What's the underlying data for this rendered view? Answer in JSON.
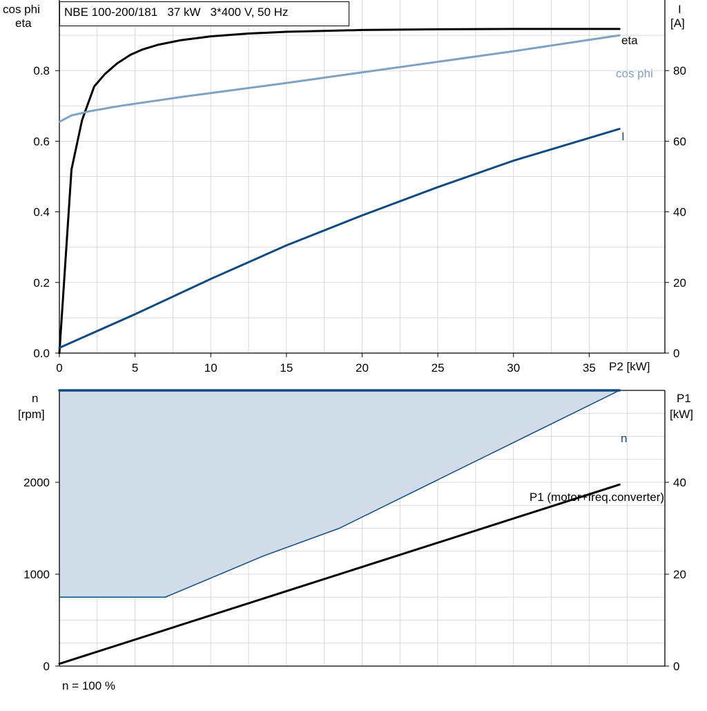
{
  "header": {
    "title": "NBE 100-200/181   37 kW   3*400 V, 50 Hz"
  },
  "footer": {
    "speed_note": "n = 100 %"
  },
  "colors": {
    "eta": "#000000",
    "cos_phi": "#7fa2c2",
    "current": "#0f4a80",
    "speed": "#0f4a80",
    "speed_fill": "#d1dce9",
    "p1": "#000000",
    "grid": "#d9d9d9"
  },
  "chart_data": [
    {
      "type": "line",
      "x_label": "P2 [kW]",
      "x_ticks": [
        0,
        5,
        10,
        15,
        20,
        25,
        30,
        35
      ],
      "xlim": [
        0,
        40
      ],
      "y_label_left_lines": [
        "cos phi",
        "eta"
      ],
      "ylim_left": [
        0,
        1.0
      ],
      "y_ticks_left": [
        "0.0",
        "0.2",
        "0.4",
        "0.6",
        "0.8"
      ],
      "y_label_right_lines": [
        "I",
        "[A]"
      ],
      "ylim_right": [
        0,
        100
      ],
      "y_ticks_right": [
        0,
        20,
        40,
        60,
        80
      ],
      "grid": true,
      "series": [
        {
          "name": "eta",
          "axis": "left",
          "x": [
            0,
            0.8,
            1.5,
            2.3,
            3,
            3.8,
            4.7,
            5.5,
            6.5,
            8,
            10,
            12.5,
            15,
            20,
            25,
            30,
            37
          ],
          "y": [
            0.0,
            0.52,
            0.66,
            0.755,
            0.79,
            0.82,
            0.845,
            0.86,
            0.873,
            0.886,
            0.897,
            0.905,
            0.91,
            0.915,
            0.917,
            0.918,
            0.918
          ]
        },
        {
          "name": "cos phi",
          "axis": "left",
          "x": [
            0,
            0.8,
            2,
            4,
            8,
            15,
            20,
            25,
            30,
            37
          ],
          "y": [
            0.655,
            0.673,
            0.685,
            0.7,
            0.725,
            0.765,
            0.795,
            0.825,
            0.855,
            0.9
          ]
        },
        {
          "name": "I",
          "axis": "right",
          "x": [
            0,
            5,
            10,
            15,
            20,
            25,
            30,
            37
          ],
          "y": [
            1.5,
            11,
            21,
            30.5,
            39,
            47,
            54.5,
            63.5
          ]
        }
      ]
    },
    {
      "type": "area",
      "x_label": "",
      "xlim": [
        0,
        40
      ],
      "y_label_left_lines": [
        "n",
        "[rpm]"
      ],
      "ylim_left": [
        0,
        3000
      ],
      "y_ticks_left": [
        0,
        1000,
        2000
      ],
      "y_label_right_lines": [
        "P1",
        "[kW]"
      ],
      "ylim_right": [
        0,
        60
      ],
      "y_ticks_right": [
        0,
        20,
        40
      ],
      "grid": true,
      "series": [
        {
          "name": "n",
          "axis": "left",
          "x": [
            0,
            37
          ],
          "y": [
            3000,
            3000
          ]
        },
        {
          "name": "",
          "axis": "left",
          "x": [
            0,
            7,
            13.5,
            18.5,
            37
          ],
          "y": [
            750,
            750,
            1200,
            1500,
            3000
          ]
        },
        {
          "name": "P1 (motor+freq.converter)",
          "axis": "right",
          "x": [
            0,
            37
          ],
          "y": [
            0.5,
            39.5
          ]
        }
      ]
    }
  ]
}
